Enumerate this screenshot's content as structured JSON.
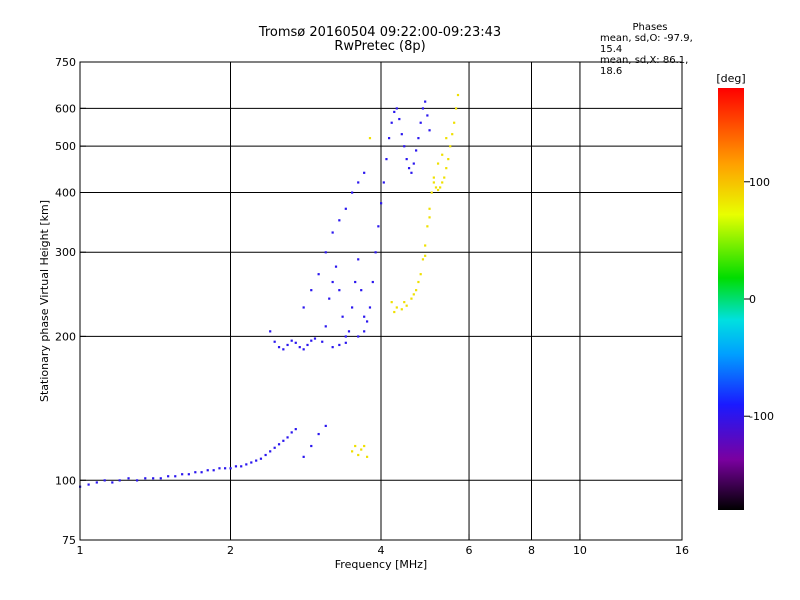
{
  "header": {
    "title_line1": "Tromsø 20160504 09:22:00-09:23:43",
    "title_line2": "RwPretec (8p)"
  },
  "phases": {
    "title": "Phases",
    "line1": "mean, sd,O: -97.9, 15.4",
    "line2": "mean, sd,X:  86.1, 18.6"
  },
  "colorbar": {
    "unit_label": "[deg]",
    "ticks": [
      100,
      0,
      -100
    ],
    "range": [
      -180,
      180
    ]
  },
  "chart_data": {
    "type": "scatter",
    "title": "Tromsø 20160504 09:22:00-09:23:43",
    "subtitle": "RwPretec (8p)",
    "xlabel": "Frequency [MHz]",
    "ylabel": "Stationary phase Virtual Height [km]",
    "x_scale": "log",
    "y_scale": "log",
    "xlim": [
      1,
      16
    ],
    "ylim": [
      75,
      750
    ],
    "x_ticks": [
      1,
      2,
      4,
      6,
      8,
      10,
      16
    ],
    "y_ticks": [
      75,
      100,
      200,
      300,
      400,
      500,
      600,
      750
    ],
    "grid_x": [
      2,
      4,
      6,
      8,
      10
    ],
    "grid_y": [
      100,
      200,
      300,
      400,
      500,
      600
    ],
    "color_scale": "rainbow",
    "series": [
      {
        "name": "O",
        "color_value": -98,
        "points": [
          [
            1.0,
            97
          ],
          [
            1.04,
            98
          ],
          [
            1.08,
            99
          ],
          [
            1.12,
            100
          ],
          [
            1.16,
            99
          ],
          [
            1.2,
            100
          ],
          [
            1.25,
            101
          ],
          [
            1.3,
            100
          ],
          [
            1.35,
            101
          ],
          [
            1.4,
            101
          ],
          [
            1.45,
            101
          ],
          [
            1.5,
            102
          ],
          [
            1.55,
            102
          ],
          [
            1.6,
            103
          ],
          [
            1.65,
            103
          ],
          [
            1.7,
            104
          ],
          [
            1.75,
            104
          ],
          [
            1.8,
            105
          ],
          [
            1.85,
            105
          ],
          [
            1.9,
            106
          ],
          [
            1.95,
            106
          ],
          [
            2.0,
            106
          ],
          [
            2.05,
            107
          ],
          [
            2.1,
            107
          ],
          [
            2.15,
            108
          ],
          [
            2.2,
            109
          ],
          [
            2.25,
            110
          ],
          [
            2.3,
            111
          ],
          [
            2.35,
            113
          ],
          [
            2.4,
            115
          ],
          [
            2.45,
            117
          ],
          [
            2.5,
            119
          ],
          [
            2.55,
            121
          ],
          [
            2.6,
            123
          ],
          [
            2.65,
            126
          ],
          [
            2.7,
            128
          ],
          [
            2.8,
            112
          ],
          [
            2.9,
            118
          ],
          [
            3.0,
            125
          ],
          [
            3.1,
            130
          ],
          [
            2.4,
            205
          ],
          [
            2.45,
            195
          ],
          [
            2.5,
            190
          ],
          [
            2.55,
            188
          ],
          [
            2.6,
            192
          ],
          [
            2.65,
            196
          ],
          [
            2.7,
            194
          ],
          [
            2.75,
            190
          ],
          [
            2.8,
            188
          ],
          [
            2.85,
            192
          ],
          [
            2.9,
            196
          ],
          [
            2.95,
            198
          ],
          [
            3.05,
            195
          ],
          [
            3.1,
            210
          ],
          [
            3.15,
            240
          ],
          [
            3.2,
            260
          ],
          [
            3.25,
            280
          ],
          [
            3.3,
            250
          ],
          [
            3.35,
            220
          ],
          [
            3.4,
            200
          ],
          [
            3.45,
            205
          ],
          [
            3.5,
            230
          ],
          [
            3.55,
            260
          ],
          [
            3.6,
            290
          ],
          [
            3.65,
            250
          ],
          [
            3.7,
            220
          ],
          [
            3.75,
            215
          ],
          [
            3.8,
            230
          ],
          [
            3.85,
            260
          ],
          [
            3.9,
            300
          ],
          [
            3.95,
            340
          ],
          [
            4.0,
            380
          ],
          [
            4.05,
            420
          ],
          [
            4.1,
            470
          ],
          [
            4.15,
            520
          ],
          [
            4.2,
            560
          ],
          [
            4.25,
            590
          ],
          [
            4.3,
            600
          ],
          [
            4.35,
            570
          ],
          [
            4.4,
            530
          ],
          [
            4.45,
            500
          ],
          [
            4.5,
            470
          ],
          [
            4.55,
            450
          ],
          [
            4.6,
            440
          ],
          [
            4.65,
            460
          ],
          [
            4.7,
            490
          ],
          [
            4.75,
            520
          ],
          [
            4.8,
            560
          ],
          [
            4.85,
            600
          ],
          [
            4.9,
            620
          ],
          [
            4.95,
            580
          ],
          [
            5.0,
            540
          ],
          [
            2.8,
            230
          ],
          [
            2.9,
            250
          ],
          [
            3.0,
            270
          ],
          [
            3.1,
            300
          ],
          [
            3.2,
            330
          ],
          [
            3.3,
            350
          ],
          [
            3.4,
            370
          ],
          [
            3.5,
            400
          ],
          [
            3.6,
            420
          ],
          [
            3.7,
            440
          ],
          [
            3.2,
            190
          ],
          [
            3.3,
            192
          ],
          [
            3.4,
            194
          ],
          [
            3.6,
            200
          ],
          [
            3.7,
            205
          ]
        ]
      },
      {
        "name": "X",
        "color_value": 86,
        "points": [
          [
            4.3,
            230
          ],
          [
            4.4,
            228
          ],
          [
            4.5,
            232
          ],
          [
            4.6,
            240
          ],
          [
            4.7,
            250
          ],
          [
            4.8,
            270
          ],
          [
            4.85,
            290
          ],
          [
            4.9,
            310
          ],
          [
            4.95,
            340
          ],
          [
            5.0,
            370
          ],
          [
            5.05,
            400
          ],
          [
            5.1,
            420
          ],
          [
            5.15,
            410
          ],
          [
            5.2,
            405
          ],
          [
            5.25,
            410
          ],
          [
            5.3,
            420
          ],
          [
            5.35,
            430
          ],
          [
            5.4,
            450
          ],
          [
            5.45,
            470
          ],
          [
            5.5,
            500
          ],
          [
            5.55,
            530
          ],
          [
            5.6,
            560
          ],
          [
            5.65,
            600
          ],
          [
            5.7,
            640
          ],
          [
            3.5,
            115
          ],
          [
            3.55,
            118
          ],
          [
            3.6,
            113
          ],
          [
            3.65,
            116
          ],
          [
            3.7,
            118
          ],
          [
            3.75,
            112
          ],
          [
            3.8,
            520
          ],
          [
            5.3,
            480
          ],
          [
            5.4,
            520
          ],
          [
            5.2,
            460
          ],
          [
            4.2,
            236
          ],
          [
            4.25,
            225
          ],
          [
            4.45,
            236
          ],
          [
            4.65,
            245
          ],
          [
            4.75,
            260
          ],
          [
            4.9,
            295
          ],
          [
            5.0,
            355
          ],
          [
            5.1,
            430
          ]
        ]
      }
    ]
  }
}
